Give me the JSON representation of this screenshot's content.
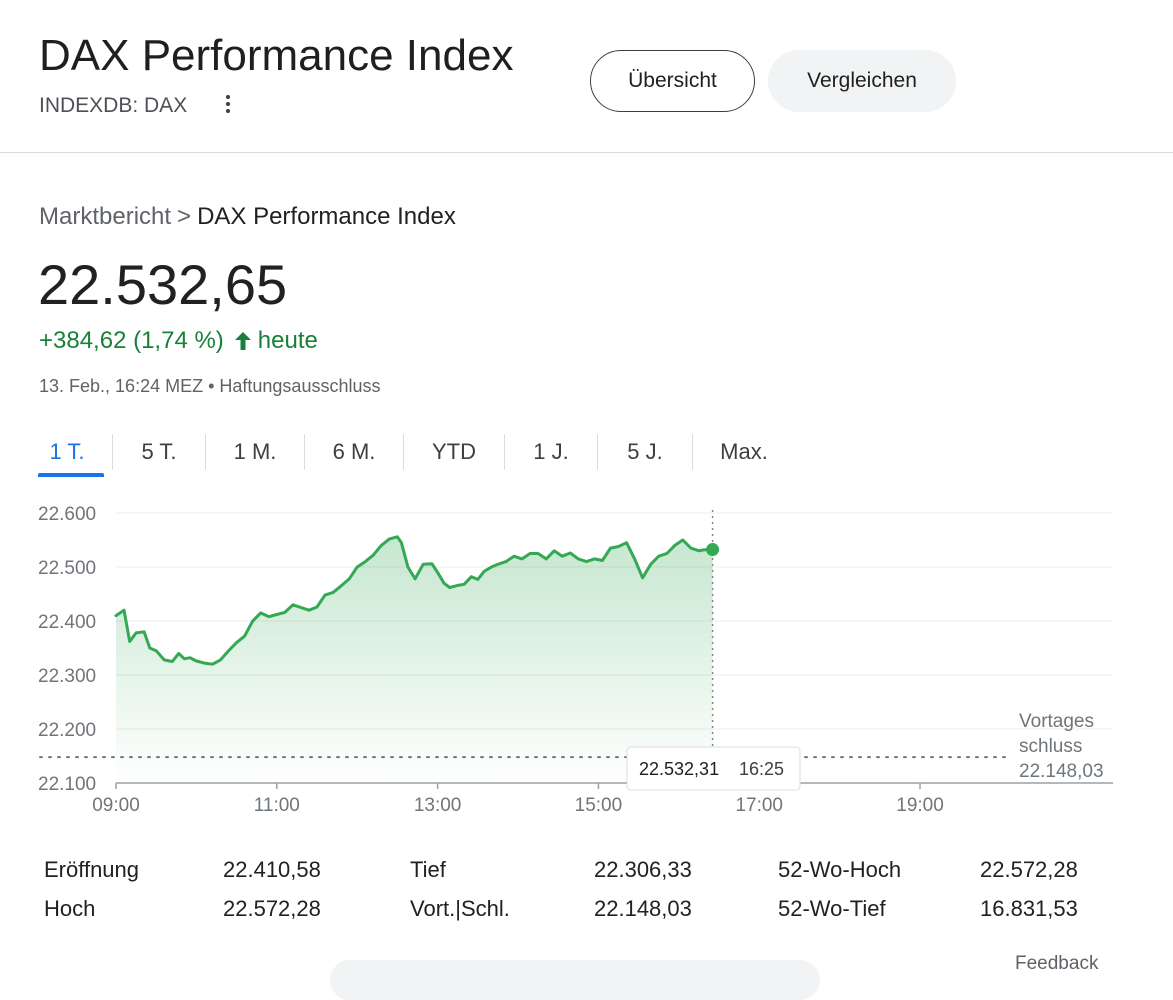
{
  "header": {
    "title": "DAX Performance Index",
    "ticker": "INDEXDB: DAX",
    "overview_label": "Übersicht",
    "compare_label": "Vergleichen"
  },
  "breadcrumb": {
    "parent": "Marktbericht",
    "separator": ">",
    "current": "DAX Performance Index"
  },
  "quote": {
    "price": "22.532,65",
    "change": "+384,62 (1,74 %)",
    "change_suffix": "heute",
    "change_color": "#188038",
    "timestamp": "13. Feb., 16:24 MEZ • Haftungsausschluss"
  },
  "tabs": [
    {
      "label": "1 T.",
      "active": true
    },
    {
      "label": "5 T."
    },
    {
      "label": "1 M."
    },
    {
      "label": "6 M."
    },
    {
      "label": "YTD"
    },
    {
      "label": "1 J."
    },
    {
      "label": "5 J."
    },
    {
      "label": "Max."
    }
  ],
  "chart_data": {
    "type": "area",
    "line_color": "#34a853",
    "grid": true,
    "y_ticks": [
      "22.600",
      "22.500",
      "22.400",
      "22.300",
      "22.200",
      "22.100"
    ],
    "ylim": [
      22100,
      22600
    ],
    "x_ticks": [
      "09:00",
      "11:00",
      "13:00",
      "15:00",
      "17:00",
      "19:00"
    ],
    "xlim_hours": [
      9,
      21.4
    ],
    "previous_close": {
      "label_line1": "Vortages",
      "label_line2": "schluss",
      "value_text": "22.148,03",
      "value": 22148.03
    },
    "tooltip": {
      "value": "22.532,31",
      "time": "16:25"
    },
    "series": [
      {
        "x": [
          9.0,
          9.1,
          9.17,
          9.25,
          9.35,
          9.42,
          9.5,
          9.6,
          9.7,
          9.78,
          9.85,
          9.92,
          10.0,
          10.1,
          10.2,
          10.3,
          10.4,
          10.5,
          10.6,
          10.7,
          10.8,
          10.9,
          11.0,
          11.1,
          11.2,
          11.3,
          11.4,
          11.5,
          11.6,
          11.7,
          11.8,
          11.9,
          12.0,
          12.1,
          12.2,
          12.3,
          12.4,
          12.5,
          12.55,
          12.63,
          12.72,
          12.82,
          12.93,
          13.0,
          13.08,
          13.15,
          13.25,
          13.33,
          13.42,
          13.5,
          13.58,
          13.67,
          13.75,
          13.85,
          13.95,
          14.05,
          14.15,
          14.25,
          14.35,
          14.45,
          14.55,
          14.65,
          14.75,
          14.85,
          14.95,
          15.05,
          15.15,
          15.25,
          15.35,
          15.45,
          15.55,
          15.65,
          15.75,
          15.85,
          15.95,
          16.05,
          16.15,
          16.25,
          16.32,
          16.42
        ],
        "y": [
          22410,
          22420,
          22362,
          22378,
          22380,
          22350,
          22345,
          22328,
          22325,
          22340,
          22330,
          22332,
          22326,
          22322,
          22320,
          22328,
          22345,
          22360,
          22372,
          22400,
          22415,
          22408,
          22412,
          22416,
          22430,
          22425,
          22420,
          22426,
          22448,
          22453,
          22465,
          22478,
          22500,
          22510,
          22522,
          22540,
          22552,
          22556,
          22545,
          22500,
          22478,
          22505,
          22506,
          22490,
          22470,
          22462,
          22466,
          22468,
          22482,
          22477,
          22492,
          22500,
          22505,
          22510,
          22520,
          22515,
          22525,
          22525,
          22515,
          22530,
          22520,
          22526,
          22515,
          22510,
          22515,
          22512,
          22535,
          22538,
          22545,
          22515,
          22480,
          22505,
          22520,
          22525,
          22540,
          22550,
          22535,
          22530,
          22532,
          22532.31
        ]
      }
    ]
  },
  "stats": [
    {
      "label": "Eröffnung",
      "value": "22.410,58"
    },
    {
      "label": "Hoch",
      "value": "22.572,28"
    },
    {
      "label": "Tief",
      "value": "22.306,33"
    },
    {
      "label": "Vort.|Schl.",
      "value": "22.148,03"
    },
    {
      "label": "52-Wo-Hoch",
      "value": "22.572,28"
    },
    {
      "label": "52-Wo-Tief",
      "value": "16.831,53"
    }
  ],
  "footer": {
    "feedback": "Feedback"
  }
}
